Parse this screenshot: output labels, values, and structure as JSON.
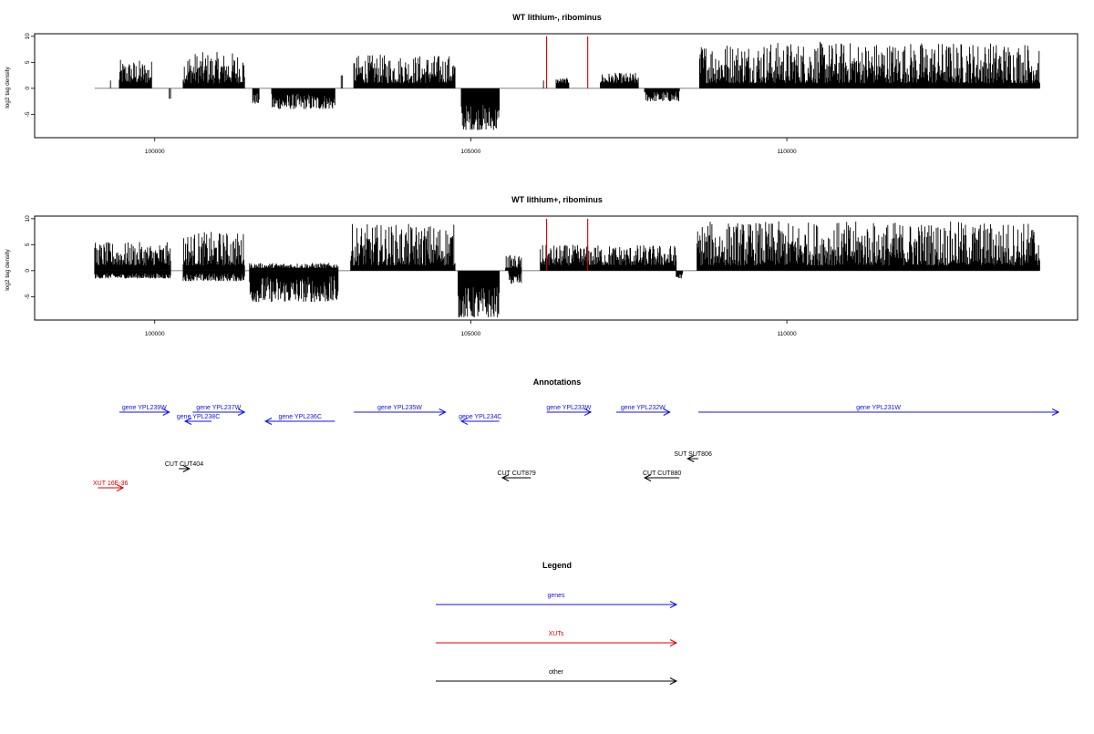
{
  "chart_data": [
    {
      "type": "bar",
      "title": "WT lithium-, ribominus",
      "xlabel": "",
      "ylabel": "log2 tag density",
      "xlim": [
        98100,
        114600
      ],
      "ylim": [
        -9.5,
        10.5
      ],
      "x_ticks": [
        "100000",
        "105000",
        "110000"
      ],
      "y_ticks": [
        "10",
        "5",
        "0",
        "-5"
      ],
      "bar_color": "#000000",
      "highlight_color": "#cc0000",
      "segments": [
        {
          "x_start": 99300,
          "x_end": 99310,
          "min": 1.5,
          "max": 1.5,
          "side": "pos"
        },
        {
          "x_start": 99440,
          "x_end": 99950,
          "min": 1.0,
          "max": 5.5,
          "side": "pos"
        },
        {
          "x_start": 100230,
          "x_end": 100250,
          "min": -2.0,
          "max": -2.0,
          "side": "neg"
        },
        {
          "x_start": 100450,
          "x_end": 101420,
          "min": 1.0,
          "max": 7.0,
          "side": "pos"
        },
        {
          "x_start": 101550,
          "x_end": 101650,
          "min": -3.0,
          "max": -1.0,
          "side": "neg"
        },
        {
          "x_start": 101850,
          "x_end": 102850,
          "min": -4.0,
          "max": -1.0,
          "side": "neg"
        },
        {
          "x_start": 102950,
          "x_end": 102970,
          "min": 2.5,
          "max": 2.5,
          "side": "pos"
        },
        {
          "x_start": 103150,
          "x_end": 104750,
          "min": 1.0,
          "max": 6.5,
          "side": "pos"
        },
        {
          "x_start": 104850,
          "x_end": 105450,
          "min": -8.0,
          "max": -3.0,
          "side": "neg"
        },
        {
          "x_start": 106150,
          "x_end": 106160,
          "min": 1.5,
          "max": 1.5,
          "side": "pos"
        },
        {
          "x_start": 106350,
          "x_end": 106550,
          "min": 1.0,
          "max": 2.0,
          "side": "pos"
        },
        {
          "x_start": 107050,
          "x_end": 107650,
          "min": 1.0,
          "max": 3.0,
          "side": "pos"
        },
        {
          "x_start": 107750,
          "x_end": 108300,
          "min": -2.5,
          "max": -0.5,
          "side": "neg"
        },
        {
          "x_start": 108620,
          "x_end": 114000,
          "min": 1.0,
          "max": 9.0,
          "side": "pos"
        }
      ],
      "highlights": [
        {
          "x": 106200,
          "y": 10
        },
        {
          "x": 106850,
          "y": 10
        }
      ]
    },
    {
      "type": "bar",
      "title": "WT lithium+, ribominus",
      "xlabel": "",
      "ylabel": "log2 tag density",
      "xlim": [
        98100,
        114600
      ],
      "ylim": [
        -9.5,
        10.5
      ],
      "x_ticks": [
        "100000",
        "105000",
        "110000"
      ],
      "y_ticks": [
        "10",
        "5",
        "0",
        "-5"
      ],
      "bar_color": "#000000",
      "highlight_color": "#cc0000",
      "segments": [
        {
          "x_start": 99050,
          "x_end": 100250,
          "min": 1.0,
          "max": 5.5,
          "side": "pos"
        },
        {
          "x_start": 99050,
          "x_end": 100250,
          "min": -1.5,
          "max": -0.5,
          "side": "neg"
        },
        {
          "x_start": 100450,
          "x_end": 101420,
          "min": 1.0,
          "max": 7.5,
          "side": "pos"
        },
        {
          "x_start": 100450,
          "x_end": 101420,
          "min": -2.0,
          "max": -0.5,
          "side": "neg"
        },
        {
          "x_start": 101500,
          "x_end": 102900,
          "min": -6.0,
          "max": -1.0,
          "side": "neg"
        },
        {
          "x_start": 101500,
          "x_end": 102900,
          "min": 0.5,
          "max": 1.5,
          "side": "pos"
        },
        {
          "x_start": 103100,
          "x_end": 104750,
          "min": 1.0,
          "max": 9.0,
          "side": "pos"
        },
        {
          "x_start": 104800,
          "x_end": 105450,
          "min": -9.0,
          "max": -3.0,
          "side": "neg"
        },
        {
          "x_start": 105550,
          "x_end": 105800,
          "min": 0.5,
          "max": 3.0,
          "side": "pos"
        },
        {
          "x_start": 105600,
          "x_end": 105800,
          "min": -2.5,
          "max": -0.5,
          "side": "neg"
        },
        {
          "x_start": 106100,
          "x_end": 108250,
          "min": 1.0,
          "max": 5.0,
          "side": "pos"
        },
        {
          "x_start": 108250,
          "x_end": 108350,
          "min": -1.5,
          "max": -0.5,
          "side": "neg"
        },
        {
          "x_start": 108580,
          "x_end": 114000,
          "min": 1.0,
          "max": 9.5,
          "side": "pos"
        }
      ],
      "highlights": [
        {
          "x": 106200,
          "y": 10
        },
        {
          "x": 106850,
          "y": 10
        }
      ]
    }
  ],
  "annotations": {
    "title": "Annotations",
    "colors": {
      "gene": "#1010ee",
      "xut": "#dd0000",
      "other": "#000000"
    },
    "items": [
      {
        "label": "gene YPL239W",
        "kind": "gene",
        "start": 99440,
        "end": 100230,
        "strand": "+"
      },
      {
        "label": "gene YPL237W",
        "kind": "gene",
        "start": 100600,
        "end": 101420,
        "strand": "+"
      },
      {
        "label": "gene YPL238C",
        "kind": "gene",
        "start": 100480,
        "end": 100900,
        "strand": "-"
      },
      {
        "label": "gene YPL236C",
        "kind": "gene",
        "start": 101750,
        "end": 102850,
        "strand": "-"
      },
      {
        "label": "gene YPL235W",
        "kind": "gene",
        "start": 103150,
        "end": 104600,
        "strand": "+"
      },
      {
        "label": "gene YPL234C",
        "kind": "gene",
        "start": 104850,
        "end": 105450,
        "strand": "-"
      },
      {
        "label": "gene YPL233W",
        "kind": "gene",
        "start": 106200,
        "end": 106900,
        "strand": "+"
      },
      {
        "label": "gene YPL232W",
        "kind": "gene",
        "start": 107300,
        "end": 108150,
        "strand": "+"
      },
      {
        "label": "gene YPL231W",
        "kind": "gene",
        "start": 108600,
        "end": 114300,
        "strand": "+"
      },
      {
        "label": "SUT SUT806",
        "kind": "other",
        "start": 108430,
        "end": 108600,
        "strand": "-"
      },
      {
        "label": "CUT CUT404",
        "kind": "other",
        "start": 100380,
        "end": 100550,
        "strand": "+"
      },
      {
        "label": "CUT CUT879",
        "kind": "other",
        "start": 105500,
        "end": 105950,
        "strand": "-"
      },
      {
        "label": "CUT CUT880",
        "kind": "other",
        "start": 107750,
        "end": 108300,
        "strand": "-"
      },
      {
        "label": "XUT 16E-36",
        "kind": "xut",
        "start": 99100,
        "end": 99500,
        "strand": "+"
      }
    ]
  },
  "legend": {
    "title": "Legend",
    "items": [
      {
        "label": "genes",
        "color": "#1010ee"
      },
      {
        "label": "XUTs",
        "color": "#dd0000"
      },
      {
        "label": "other",
        "color": "#000000"
      }
    ]
  }
}
